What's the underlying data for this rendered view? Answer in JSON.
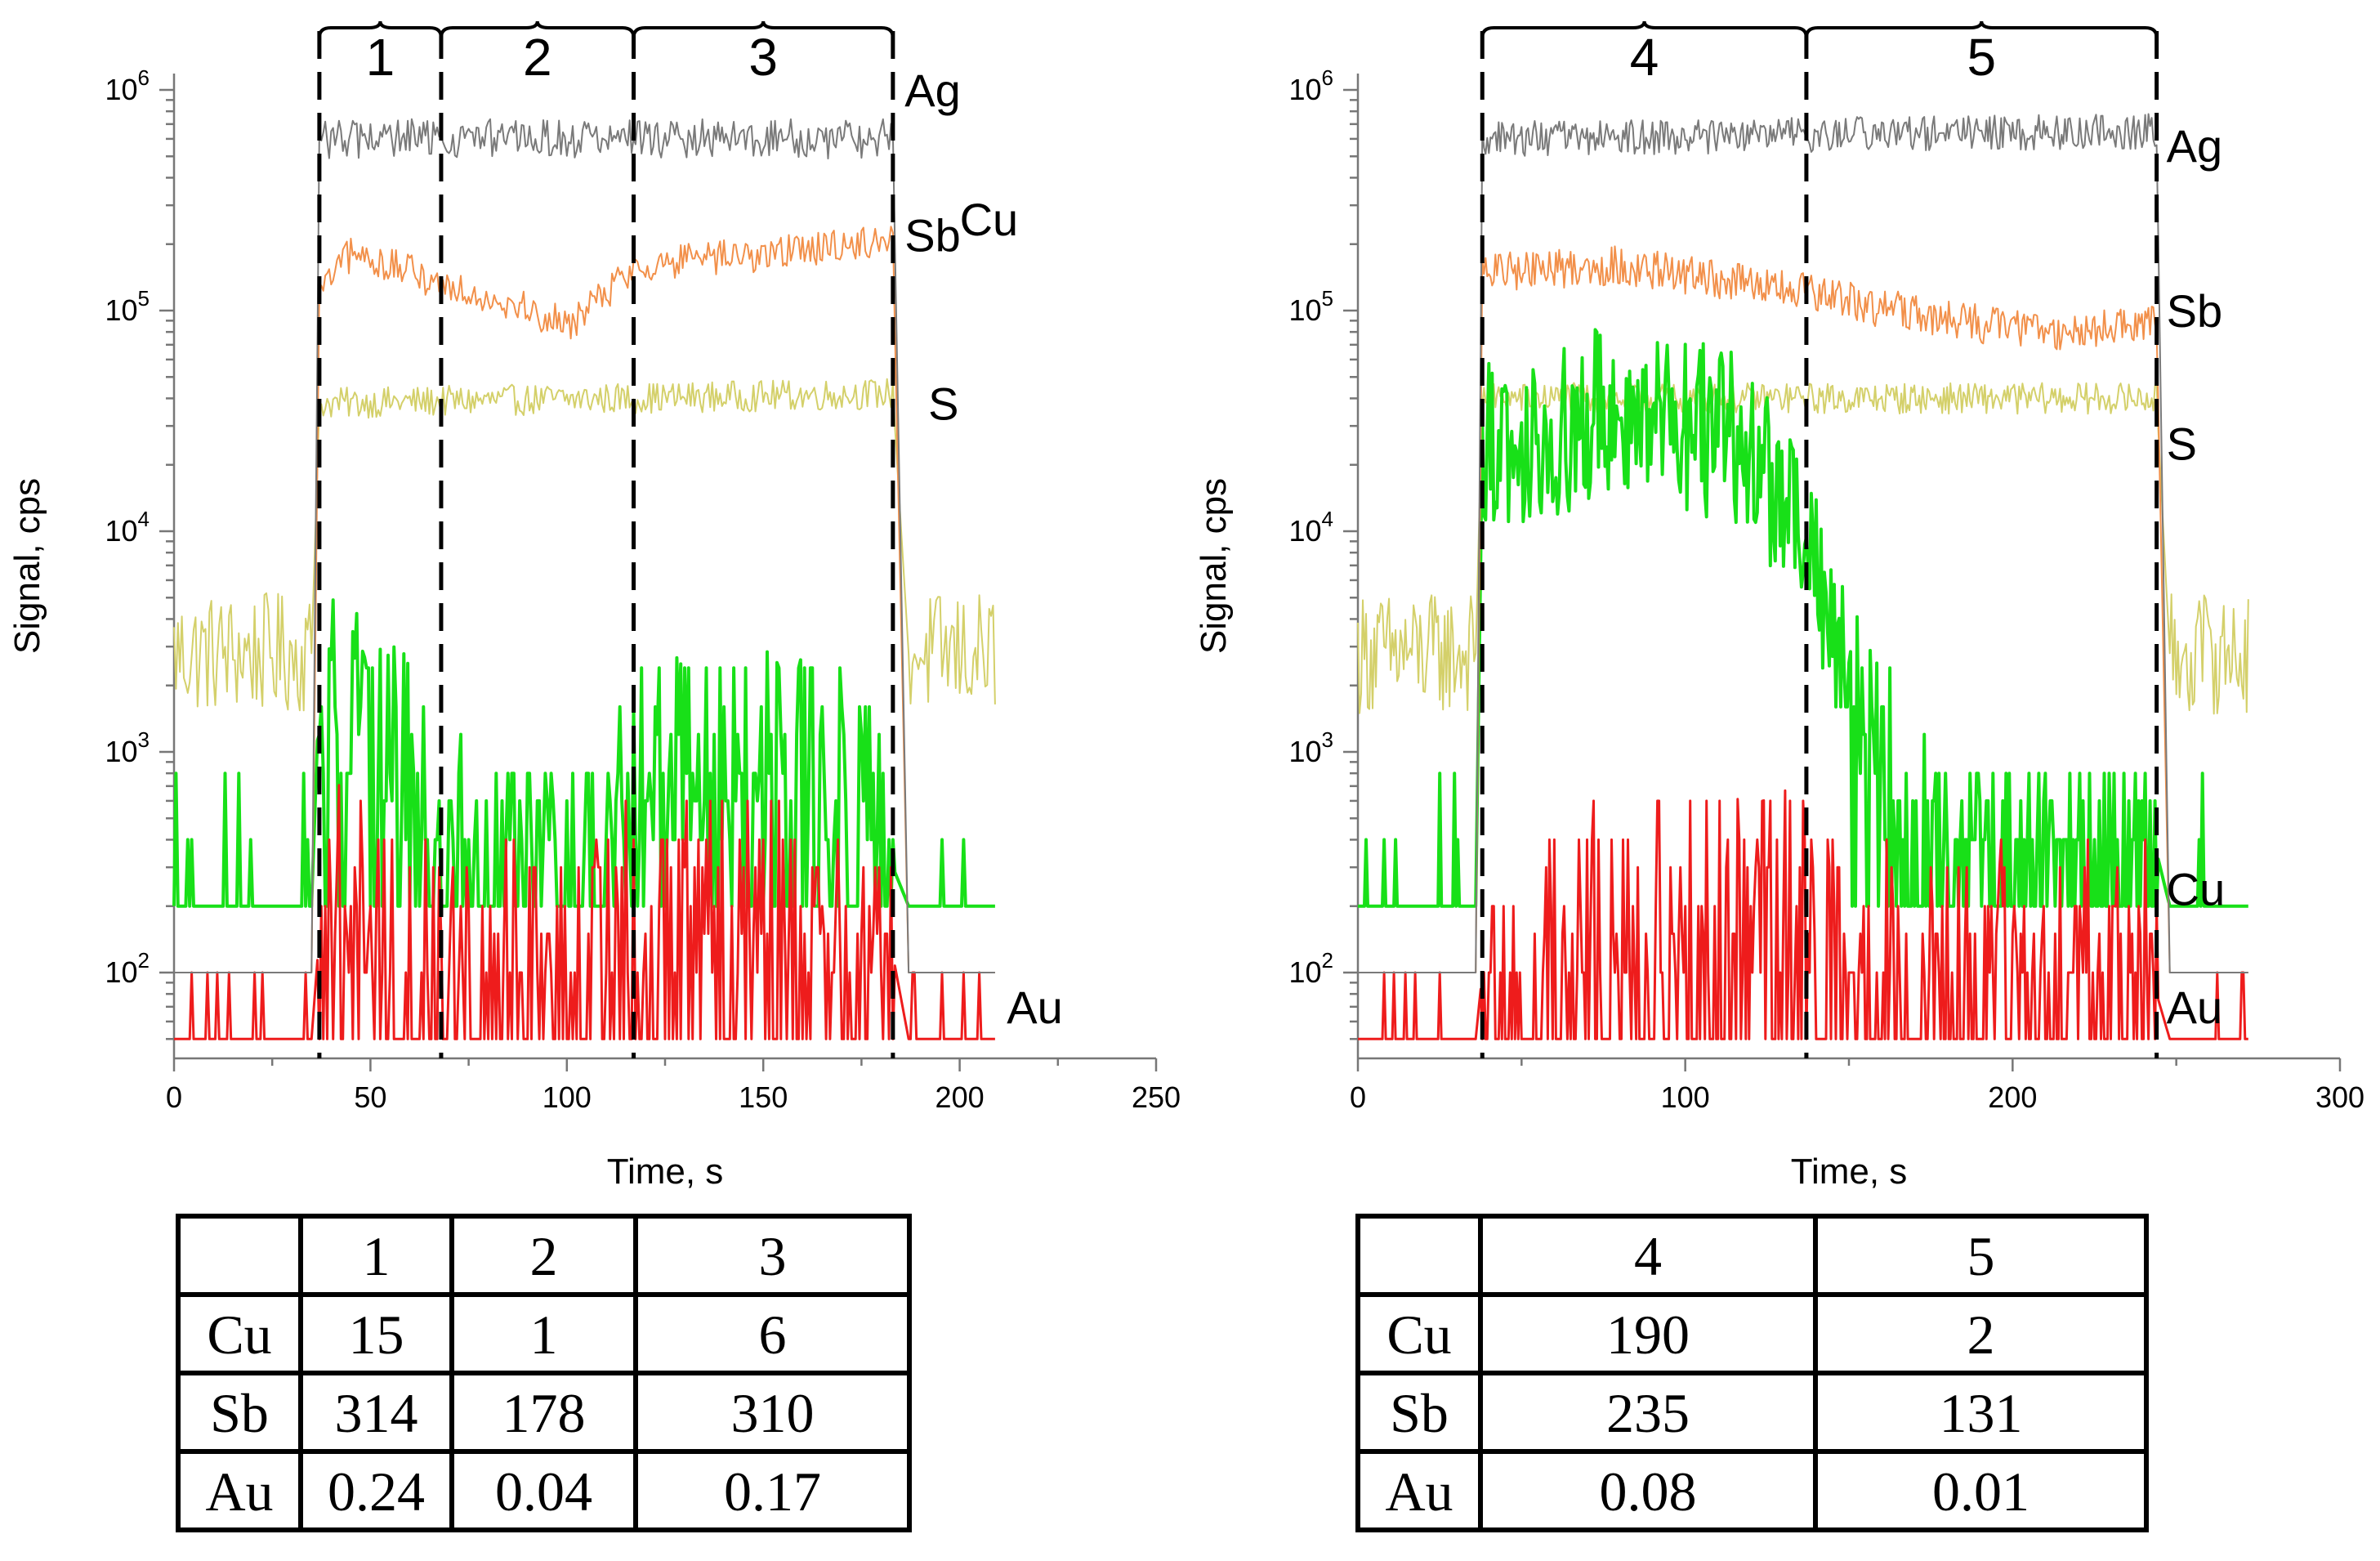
{
  "colors": {
    "Ag": "#7a7a7a",
    "Sb": "#f2904a",
    "S": "#d4d06a",
    "Cu": "#18e018",
    "Au": "#ee1c1c",
    "Ag_s_trace": "#d09050"
  },
  "chart_data": [
    {
      "type": "line",
      "title": "",
      "xlabel": "Time, s",
      "ylabel": "Signal, cps",
      "xlim": [
        0,
        250
      ],
      "ylim": [
        50,
        1000000
      ],
      "yscale": "log",
      "x_ticks": [
        0,
        50,
        100,
        150,
        200,
        250
      ],
      "x_tick_labels": [
        "0",
        "50",
        "100",
        "150",
        "200",
        "250"
      ],
      "y_ticks": [
        100,
        1000,
        10000,
        100000,
        1000000
      ],
      "y_tick_labels": [
        {
          "base": "10",
          "exp": "2"
        },
        {
          "base": "10",
          "exp": "3"
        },
        {
          "base": "10",
          "exp": "4"
        },
        {
          "base": "10",
          "exp": "5"
        },
        {
          "base": "10",
          "exp": "6"
        }
      ],
      "grid": false,
      "time_end": 209,
      "ablation": [
        37,
        183
      ],
      "dividers": [
        37,
        68,
        117,
        183
      ],
      "segments": [
        {
          "label": "1",
          "start": 37,
          "end": 68
        },
        {
          "label": "2",
          "start": 68,
          "end": 117
        },
        {
          "label": "3",
          "start": 117,
          "end": 183
        }
      ],
      "series": [
        {
          "name": "Ag",
          "label_at": 1000000,
          "profile": [
            [
              37,
              600000
            ],
            [
              183,
              600000
            ]
          ],
          "background": 100,
          "noise": 0.09,
          "width": 2,
          "label_x": 186
        },
        {
          "name": "Sb",
          "label_at": 220000,
          "profile": [
            [
              37,
              120000
            ],
            [
              45,
              180000
            ],
            [
              55,
              160000
            ],
            [
              70,
              130000
            ],
            [
              85,
              110000
            ],
            [
              100,
              85000
            ],
            [
              118,
              160000
            ],
            [
              150,
              180000
            ],
            [
              183,
              210000
            ]
          ],
          "background": 100,
          "noise": 0.08,
          "width": 2,
          "label_x": 186
        },
        {
          "name": "S",
          "label_at": 38000,
          "profile": [
            [
              37,
              38000
            ],
            [
              183,
              42000
            ]
          ],
          "background": 2800,
          "noise": 0.07,
          "width": 2,
          "label_x": 192
        },
        {
          "name": "Cu",
          "label_at": 260000,
          "profile": [
            [
              37,
              2000
            ],
            [
              50,
              2200
            ],
            [
              56,
              1200
            ],
            [
              62,
              700
            ],
            [
              70,
              350
            ],
            [
              110,
              350
            ],
            [
              120,
              900
            ],
            [
              150,
              1000
            ],
            [
              175,
              700
            ],
            [
              183,
              300
            ]
          ],
          "background": 200,
          "noise": 0.3,
          "width": 4,
          "label_x": 200
        },
        {
          "name": "Au",
          "label_at": 70,
          "profile": [
            [
              37,
              150
            ],
            [
              45,
              250
            ],
            [
              60,
              120
            ],
            [
              68,
              80
            ],
            [
              90,
              110
            ],
            [
              117,
              150
            ],
            [
              150,
              170
            ],
            [
              183,
              120
            ]
          ],
          "background": 50,
          "noise": 0.35,
          "width": 3,
          "label_x": 212
        }
      ],
      "table": {
        "columns": [
          "",
          "1",
          "2",
          "3"
        ],
        "rows": [
          [
            "Cu",
            "15",
            "1",
            "6"
          ],
          [
            "Sb",
            "314",
            "178",
            "310"
          ],
          [
            "Au",
            "0.24",
            "0.04",
            "0.17"
          ]
        ]
      }
    },
    {
      "type": "line",
      "title": "",
      "xlabel": "Time, s",
      "ylabel": "Signal, cps",
      "xlim": [
        0,
        300
      ],
      "ylim": [
        50,
        1000000
      ],
      "yscale": "log",
      "x_ticks": [
        0,
        100,
        200,
        300
      ],
      "x_tick_labels": [
        "0",
        "100",
        "200",
        "300"
      ],
      "y_ticks": [
        100,
        1000,
        10000,
        100000,
        1000000
      ],
      "y_tick_labels": [
        {
          "base": "10",
          "exp": "2"
        },
        {
          "base": "10",
          "exp": "3"
        },
        {
          "base": "10",
          "exp": "4"
        },
        {
          "base": "10",
          "exp": "5"
        },
        {
          "base": "10",
          "exp": "6"
        }
      ],
      "grid": false,
      "time_end": 272,
      "ablation": [
        38,
        244
      ],
      "dividers": [
        38,
        137,
        244
      ],
      "segments": [
        {
          "label": "4",
          "start": 38,
          "end": 137
        },
        {
          "label": "5",
          "start": 137,
          "end": 244
        }
      ],
      "series": [
        {
          "name": "Ag",
          "label_at": 560000,
          "profile": [
            [
              38,
              600000
            ],
            [
              244,
              650000
            ]
          ],
          "background": 100,
          "noise": 0.08,
          "width": 2,
          "label_x": 247
        },
        {
          "name": "Sb",
          "label_at": 100000,
          "profile": [
            [
              38,
              150000
            ],
            [
              80,
              160000
            ],
            [
              137,
              120000
            ],
            [
              180,
              90000
            ],
            [
              220,
              80000
            ],
            [
              244,
              90000
            ]
          ],
          "background": 100,
          "noise": 0.09,
          "width": 2,
          "label_x": 247
        },
        {
          "name": "S",
          "label_at": 25000,
          "profile": [
            [
              38,
              40000
            ],
            [
              244,
              40000
            ]
          ],
          "background": 2800,
          "noise": 0.07,
          "width": 2,
          "label_x": 247
        },
        {
          "name": "Cu",
          "label_at": 240,
          "profile": [
            [
              38,
              25000
            ],
            [
              80,
              35000
            ],
            [
              120,
              25000
            ],
            [
              137,
              8000
            ],
            [
              150,
              2500
            ],
            [
              160,
              1000
            ],
            [
              170,
              450
            ],
            [
              200,
              350
            ],
            [
              244,
              350
            ]
          ],
          "background": 200,
          "noise": 0.25,
          "width": 4,
          "label_x": 247
        },
        {
          "name": "Au",
          "label_at": 70,
          "profile": [
            [
              38,
              100
            ],
            [
              100,
              140
            ],
            [
              137,
              160
            ],
            [
              160,
              90
            ],
            [
              244,
              80
            ]
          ],
          "background": 50,
          "noise": 0.4,
          "width": 3,
          "label_x": 247
        }
      ],
      "table": {
        "columns": [
          "",
          "4",
          "5"
        ],
        "rows": [
          [
            "Cu",
            "190",
            "2"
          ],
          [
            "Sb",
            "235",
            "131"
          ],
          [
            "Au",
            "0.08",
            "0.01"
          ]
        ]
      }
    }
  ]
}
